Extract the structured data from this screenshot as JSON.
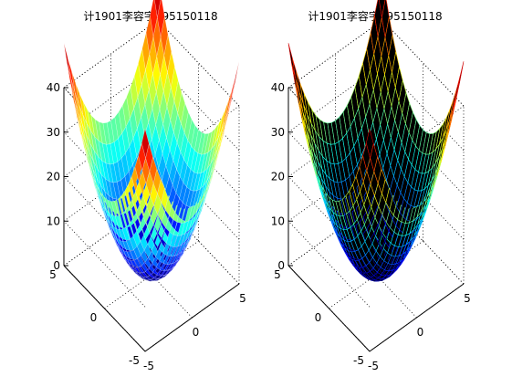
{
  "figure": {
    "background": "#ffffff"
  },
  "chart_data": [
    {
      "type": "surface",
      "style": "surf",
      "colormap": "jet",
      "title": "计1901李容宇195150118",
      "function": "x^2 + y^2 (paraboloid)",
      "xlim": [
        -5,
        5
      ],
      "ylim": [
        -5,
        5
      ],
      "zlim": [
        0,
        40
      ],
      "xticks": [
        -5,
        0,
        5
      ],
      "yticks": [
        -5,
        0,
        5
      ],
      "zticks": [
        0,
        10,
        20,
        30,
        40
      ],
      "x_tick_labels": [
        "-5",
        "0",
        "5"
      ],
      "y_tick_labels": [
        "-5",
        "0",
        "5"
      ],
      "z_tick_labels": [
        "0",
        "10",
        "20",
        "30",
        "40"
      ],
      "grid": true,
      "view": "3d"
    },
    {
      "type": "surface",
      "style": "mesh",
      "colormap": "jet",
      "face_color": "#000000",
      "title": "计1901李容宇195150118",
      "function": "x^2 + y^2 (paraboloid)",
      "xlim": [
        -5,
        5
      ],
      "ylim": [
        -5,
        5
      ],
      "zlim": [
        0,
        40
      ],
      "xticks": [
        -5,
        0,
        5
      ],
      "yticks": [
        -5,
        0,
        5
      ],
      "zticks": [
        0,
        10,
        20,
        30,
        40
      ],
      "x_tick_labels": [
        "-5",
        "0",
        "5"
      ],
      "y_tick_labels": [
        "-5",
        "0",
        "5"
      ],
      "z_tick_labels": [
        "0",
        "10",
        "20",
        "30",
        "40"
      ],
      "grid": true,
      "view": "3d"
    }
  ]
}
